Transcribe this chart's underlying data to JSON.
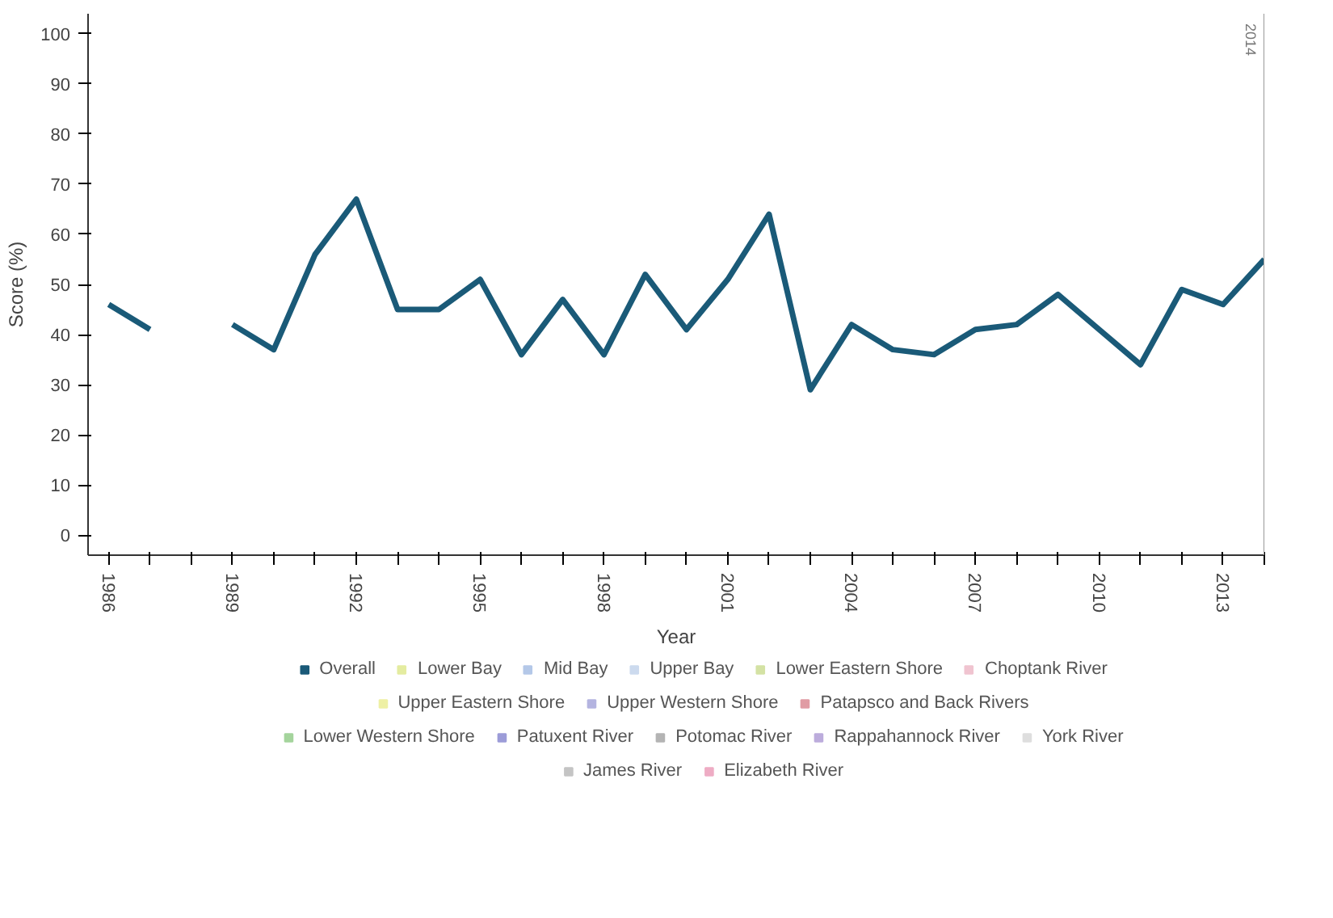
{
  "chart_data": {
    "type": "line",
    "xlabel": "Year",
    "ylabel": "Score (%)",
    "x": [
      1986,
      1987,
      1988,
      1989,
      1990,
      1991,
      1992,
      1993,
      1994,
      1995,
      1996,
      1997,
      1998,
      1999,
      2000,
      2001,
      2002,
      2003,
      2004,
      2005,
      2006,
      2007,
      2008,
      2009,
      2010,
      2011,
      2012,
      2013,
      2014
    ],
    "series": [
      {
        "name": "Overall",
        "color": "#1a5a78",
        "values": [
          46,
          41,
          null,
          42,
          37,
          56,
          67,
          45,
          45,
          51,
          36,
          47,
          36,
          52,
          41,
          51,
          64,
          29,
          42,
          37,
          36,
          41,
          42,
          48,
          41,
          34,
          49,
          46,
          55
        ]
      },
      {
        "name": "Lower Bay",
        "color": "#e4eca0",
        "values": [
          null,
          null,
          null,
          null,
          null,
          null,
          null,
          null,
          null,
          null,
          null,
          null,
          null,
          null,
          null,
          null,
          null,
          null,
          null,
          null,
          null,
          null,
          null,
          null,
          null,
          null,
          null,
          null,
          null
        ]
      },
      {
        "name": "Mid Bay",
        "color": "#b4c8e8",
        "values": [
          null,
          null,
          null,
          null,
          null,
          null,
          null,
          null,
          null,
          null,
          null,
          null,
          null,
          null,
          null,
          null,
          null,
          null,
          null,
          null,
          null,
          null,
          null,
          null,
          null,
          null,
          null,
          null,
          null
        ]
      },
      {
        "name": "Upper Bay",
        "color": "#ccdaee",
        "values": [
          null,
          null,
          null,
          null,
          null,
          null,
          null,
          null,
          null,
          null,
          null,
          null,
          null,
          null,
          null,
          null,
          null,
          null,
          null,
          null,
          null,
          null,
          null,
          null,
          null,
          null,
          null,
          null,
          null
        ]
      },
      {
        "name": "Lower Eastern Shore",
        "color": "#d4e2a4",
        "values": [
          null,
          null,
          null,
          null,
          null,
          null,
          null,
          null,
          null,
          null,
          null,
          null,
          null,
          null,
          null,
          null,
          null,
          null,
          null,
          null,
          null,
          null,
          null,
          null,
          null,
          null,
          null,
          null,
          null
        ]
      },
      {
        "name": "Choptank River",
        "color": "#f0c4d0",
        "values": [
          null,
          null,
          null,
          null,
          null,
          null,
          null,
          null,
          null,
          null,
          null,
          null,
          null,
          null,
          null,
          null,
          null,
          null,
          null,
          null,
          null,
          null,
          null,
          null,
          null,
          null,
          null,
          null,
          null
        ]
      },
      {
        "name": "Upper Eastern Shore",
        "color": "#eef0a4",
        "values": [
          null,
          null,
          null,
          null,
          null,
          null,
          null,
          null,
          null,
          null,
          null,
          null,
          null,
          null,
          null,
          null,
          null,
          null,
          null,
          null,
          null,
          null,
          null,
          null,
          null,
          null,
          null,
          null,
          null
        ]
      },
      {
        "name": "Upper Western Shore",
        "color": "#b4b4e0",
        "values": [
          null,
          null,
          null,
          null,
          null,
          null,
          null,
          null,
          null,
          null,
          null,
          null,
          null,
          null,
          null,
          null,
          null,
          null,
          null,
          null,
          null,
          null,
          null,
          null,
          null,
          null,
          null,
          null,
          null
        ]
      },
      {
        "name": "Patapsco and Back Rivers",
        "color": "#e09ca4",
        "values": [
          null,
          null,
          null,
          null,
          null,
          null,
          null,
          null,
          null,
          null,
          null,
          null,
          null,
          null,
          null,
          null,
          null,
          null,
          null,
          null,
          null,
          null,
          null,
          null,
          null,
          null,
          null,
          null,
          null
        ]
      },
      {
        "name": "Lower Western Shore",
        "color": "#a4d49c",
        "values": [
          null,
          null,
          null,
          null,
          null,
          null,
          null,
          null,
          null,
          null,
          null,
          null,
          null,
          null,
          null,
          null,
          null,
          null,
          null,
          null,
          null,
          null,
          null,
          null,
          null,
          null,
          null,
          null,
          null
        ]
      },
      {
        "name": "Patuxent River",
        "color": "#9c9cd8",
        "values": [
          null,
          null,
          null,
          null,
          null,
          null,
          null,
          null,
          null,
          null,
          null,
          null,
          null,
          null,
          null,
          null,
          null,
          null,
          null,
          null,
          null,
          null,
          null,
          null,
          null,
          null,
          null,
          null,
          null
        ]
      },
      {
        "name": "Potomac River",
        "color": "#b4b4b4",
        "values": [
          null,
          null,
          null,
          null,
          null,
          null,
          null,
          null,
          null,
          null,
          null,
          null,
          null,
          null,
          null,
          null,
          null,
          null,
          null,
          null,
          null,
          null,
          null,
          null,
          null,
          null,
          null,
          null,
          null
        ]
      },
      {
        "name": "Rappahannock River",
        "color": "#bcacdc",
        "values": [
          null,
          null,
          null,
          null,
          null,
          null,
          null,
          null,
          null,
          null,
          null,
          null,
          null,
          null,
          null,
          null,
          null,
          null,
          null,
          null,
          null,
          null,
          null,
          null,
          null,
          null,
          null,
          null,
          null
        ]
      },
      {
        "name": "York River",
        "color": "#dedede",
        "values": [
          null,
          null,
          null,
          null,
          null,
          null,
          null,
          null,
          null,
          null,
          null,
          null,
          null,
          null,
          null,
          null,
          null,
          null,
          null,
          null,
          null,
          null,
          null,
          null,
          null,
          null,
          null,
          null,
          null
        ]
      },
      {
        "name": "James River",
        "color": "#c4c4c4",
        "values": [
          null,
          null,
          null,
          null,
          null,
          null,
          null,
          null,
          null,
          null,
          null,
          null,
          null,
          null,
          null,
          null,
          null,
          null,
          null,
          null,
          null,
          null,
          null,
          null,
          null,
          null,
          null,
          null,
          null
        ]
      },
      {
        "name": "Elizabeth River",
        "color": "#eeacc4",
        "values": [
          null,
          null,
          null,
          null,
          null,
          null,
          null,
          null,
          null,
          null,
          null,
          null,
          null,
          null,
          null,
          null,
          null,
          null,
          null,
          null,
          null,
          null,
          null,
          null,
          null,
          null,
          null,
          null,
          null
        ]
      }
    ],
    "xlim": [
      1985.5,
      2014
    ],
    "ylim": [
      -4,
      104
    ],
    "xticks": [
      1986,
      {
        "value": 1987,
        "label": null
      },
      {
        "value": 1988,
        "label": null
      },
      1989,
      {
        "value": 1990,
        "label": null
      },
      {
        "value": 1991,
        "label": null
      },
      1992,
      {
        "value": 1993,
        "label": null
      },
      {
        "value": 1994,
        "label": null
      },
      1995,
      {
        "value": 1996,
        "label": null
      },
      {
        "value": 1997,
        "label": null
      },
      1998,
      {
        "value": 1999,
        "label": null
      },
      {
        "value": 2000,
        "label": null
      },
      2001,
      {
        "value": 2002,
        "label": null
      },
      {
        "value": 2003,
        "label": null
      },
      2004,
      {
        "value": 2005,
        "label": null
      },
      {
        "value": 2006,
        "label": null
      },
      2007,
      {
        "value": 2008,
        "label": null
      },
      {
        "value": 2009,
        "label": null
      },
      2010,
      {
        "value": 2011,
        "label": null
      },
      {
        "value": 2012,
        "label": null
      },
      2013,
      {
        "value": 2014,
        "label": null
      }
    ],
    "yticks": [
      0,
      10,
      20,
      30,
      40,
      50,
      60,
      70,
      80,
      90,
      100
    ],
    "ref_lines": [
      {
        "axis": "x",
        "value": 2014,
        "label": "2014",
        "color": "#999999"
      }
    ],
    "grid": false,
    "legend": "bottom",
    "marker": "none",
    "line_style": "solid"
  }
}
